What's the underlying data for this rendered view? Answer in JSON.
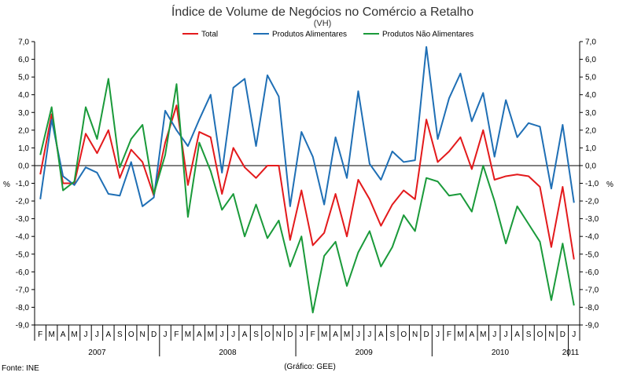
{
  "chart_data": {
    "type": "line",
    "title": "Índice de Volume de Negócios no Comércio a Retalho",
    "subtitle": "(VH)",
    "ylabel_left": "%",
    "ylabel_right": "%",
    "ylim": [
      -9.0,
      7.0
    ],
    "ystep": 1.0,
    "y_tick_labels": [
      "7,0",
      "6,0",
      "5,0",
      "4,0",
      "3,0",
      "2,0",
      "1,0",
      "0,0",
      "-1,0",
      "-2,0",
      "-3,0",
      "-4,0",
      "-5,0",
      "-6,0",
      "-7,0",
      "-8,0",
      "-9,0"
    ],
    "month_labels": [
      "F",
      "M",
      "A",
      "M",
      "J",
      "J",
      "A",
      "S",
      "O",
      "N",
      "D",
      "J",
      "F",
      "M",
      "A",
      "M",
      "J",
      "J",
      "A",
      "S",
      "O",
      "N",
      "D",
      "J",
      "F",
      "M",
      "A",
      "M",
      "J",
      "J",
      "A",
      "S",
      "O",
      "N",
      "D",
      "J",
      "F",
      "M",
      "A",
      "M",
      "J",
      "J",
      "A",
      "S",
      "O",
      "N",
      "D",
      "J"
    ],
    "year_labels": [
      {
        "label": "2007",
        "center_index": 5
      },
      {
        "label": "2008",
        "center_index": 16.5
      },
      {
        "label": "2009",
        "center_index": 28.5
      },
      {
        "label": "2010",
        "center_index": 40.5
      },
      {
        "label": "2011",
        "center_index": 46.7
      }
    ],
    "year_separators_after_index": [
      10,
      22,
      34,
      46
    ],
    "legend_position": "top-center",
    "grid": false,
    "series": [
      {
        "name": "Total",
        "color": "#e31a1c",
        "values": [
          -0.5,
          2.9,
          -1.0,
          -1.0,
          1.8,
          0.7,
          2.0,
          -0.7,
          0.9,
          0.2,
          -1.7,
          1.3,
          3.4,
          -1.1,
          1.9,
          1.6,
          -1.6,
          1.0,
          -0.1,
          -0.7,
          0.0,
          0.0,
          -4.2,
          -1.4,
          -4.5,
          -3.8,
          -1.6,
          -4.0,
          -0.8,
          -1.9,
          -3.4,
          -2.2,
          -1.4,
          -1.9,
          2.6,
          0.2,
          0.8,
          1.6,
          -0.2,
          2.0,
          -0.8,
          -0.6,
          -0.5,
          -0.6,
          -1.2,
          -4.6,
          -1.2,
          -5.3
        ]
      },
      {
        "name": "Produtos Alimentares",
        "color": "#1f6fb5",
        "values": [
          -1.9,
          2.6,
          -0.6,
          -1.1,
          -0.1,
          -0.4,
          -1.6,
          -1.7,
          0.2,
          -2.3,
          -1.8,
          3.1,
          2.0,
          1.1,
          2.6,
          4.0,
          -0.4,
          4.4,
          4.9,
          1.1,
          5.1,
          3.9,
          -2.3,
          1.9,
          0.5,
          -2.2,
          1.6,
          -0.7,
          4.2,
          0.1,
          -0.8,
          0.8,
          0.2,
          0.3,
          6.7,
          1.5,
          3.8,
          5.2,
          2.5,
          4.1,
          0.5,
          3.7,
          1.6,
          2.4,
          2.2,
          -1.3,
          2.3,
          -2.1
        ]
      },
      {
        "name": "Produtos Não Alimentares",
        "color": "#1a9a3a",
        "values": [
          0.6,
          3.3,
          -1.4,
          -0.9,
          3.3,
          1.5,
          4.9,
          -0.1,
          1.5,
          2.3,
          -1.6,
          0.6,
          4.6,
          -2.9,
          1.3,
          -0.3,
          -2.5,
          -1.6,
          -4.0,
          -2.2,
          -4.1,
          -3.1,
          -5.7,
          -4.0,
          -8.3,
          -5.1,
          -4.3,
          -6.8,
          -4.9,
          -3.7,
          -5.7,
          -4.6,
          -2.8,
          -3.7,
          -0.7,
          -0.9,
          -1.7,
          -1.6,
          -2.6,
          0.0,
          -2.0,
          -4.4,
          -2.3,
          -3.3,
          -4.3,
          -7.6,
          -4.4,
          -7.9
        ]
      }
    ]
  },
  "footer": {
    "source": "Fonte: INE",
    "credit": "(Gráfico: GEE)"
  }
}
